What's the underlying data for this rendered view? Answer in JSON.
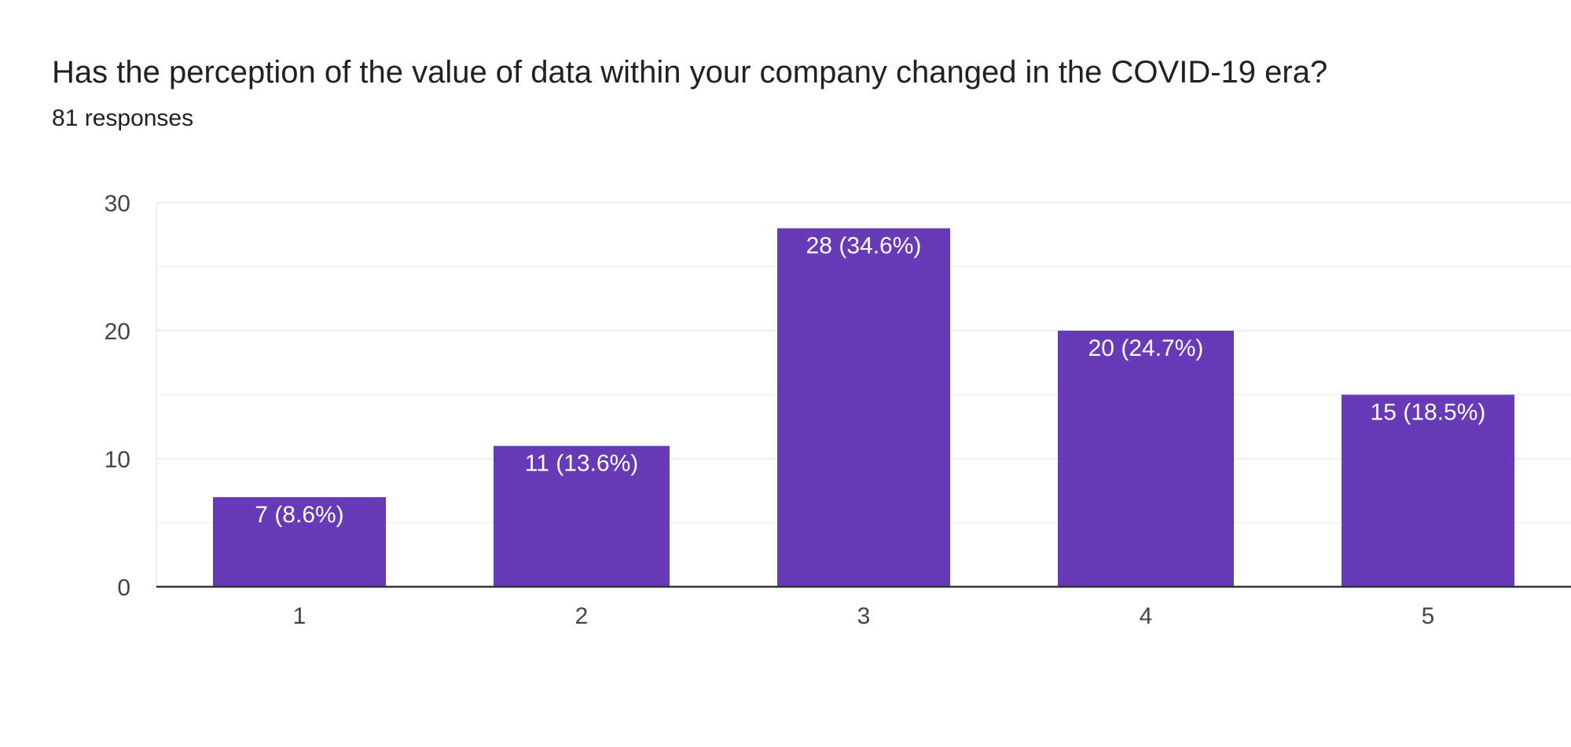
{
  "header": {
    "title": "Has the perception of the value of data within your company changed in the COVID-19 era?",
    "subtitle": "81 responses"
  },
  "colors": {
    "bar": "#673ab7",
    "gridline": "#eeeeee",
    "axis": "#333333",
    "text": "#202124"
  },
  "chart_data": {
    "type": "bar",
    "categories": [
      "1",
      "2",
      "3",
      "4",
      "5"
    ],
    "values": [
      7,
      11,
      28,
      20,
      15
    ],
    "data_labels": [
      "7 (8.6%)",
      "11 (13.6%)",
      "28 (34.6%)",
      "20 (24.7%)",
      "15 (18.5%)"
    ],
    "ylim": [
      0,
      30
    ],
    "yticks": [
      "0",
      "10",
      "20",
      "30"
    ],
    "grid": true,
    "legend": "none"
  }
}
